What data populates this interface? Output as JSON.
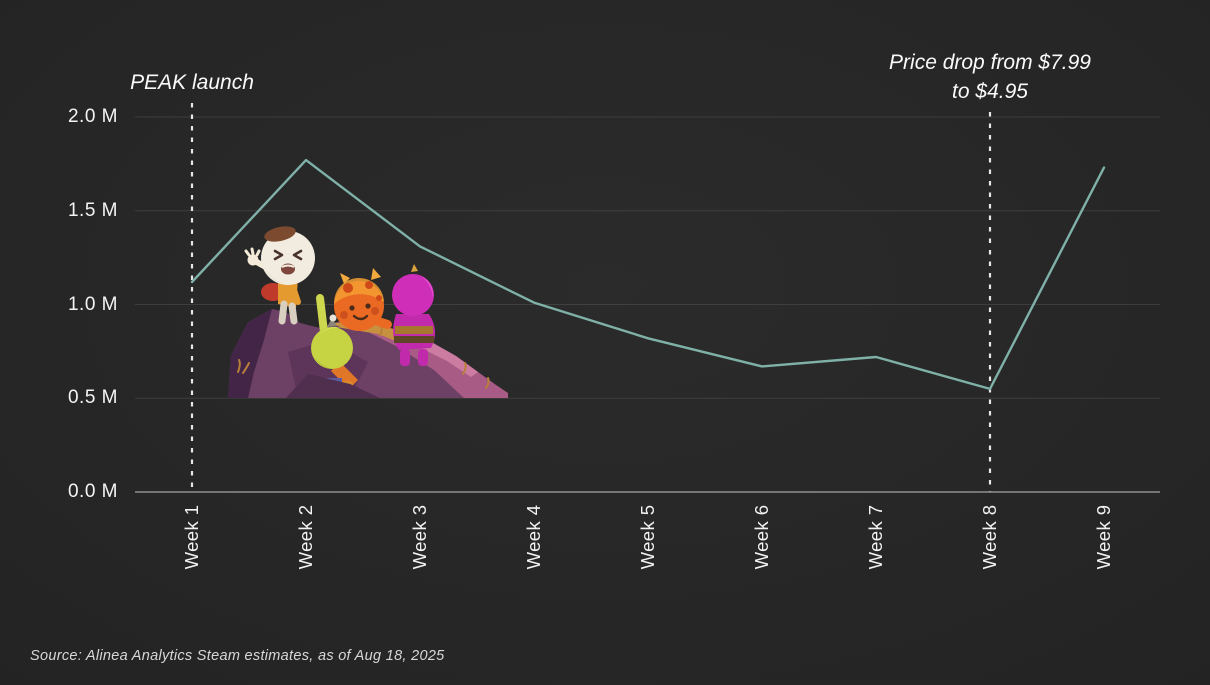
{
  "page": {
    "background": "#242424",
    "text_color": "#f4f4f4",
    "source_note": "Source: Alinea Analytics Steam estimates, as of Aug 18, 2025"
  },
  "chart_data": {
    "type": "line",
    "title": "",
    "categories": [
      "Week 1",
      "Week 2",
      "Week 3",
      "Week 4",
      "Week 5",
      "Week 6",
      "Week 7",
      "Week 8",
      "Week 9"
    ],
    "values": [
      1.12,
      1.77,
      1.31,
      1.01,
      0.82,
      0.67,
      0.72,
      0.55,
      1.73
    ],
    "unit": "M",
    "ylim": [
      0,
      2.0
    ],
    "y_ticks": [
      0.0,
      0.5,
      1.0,
      1.5,
      2.0
    ],
    "y_tick_labels": [
      "0.0 M",
      "0.5 M",
      "1.0 M",
      "1.5 M",
      "2.0 M"
    ],
    "grid": true,
    "legend": "none",
    "line_color": "#7fb1a8",
    "grid_color": "rgba(255,255,255,0.10)",
    "axis_color": "#8f8f8f",
    "annotation_color": "#e6e6e6",
    "annotations": [
      {
        "category": "Week 1",
        "lines": [
          "PEAK launch"
        ]
      },
      {
        "category": "Week 8",
        "lines": [
          "Price drop from $7.99",
          "to $4.95"
        ]
      }
    ]
  }
}
